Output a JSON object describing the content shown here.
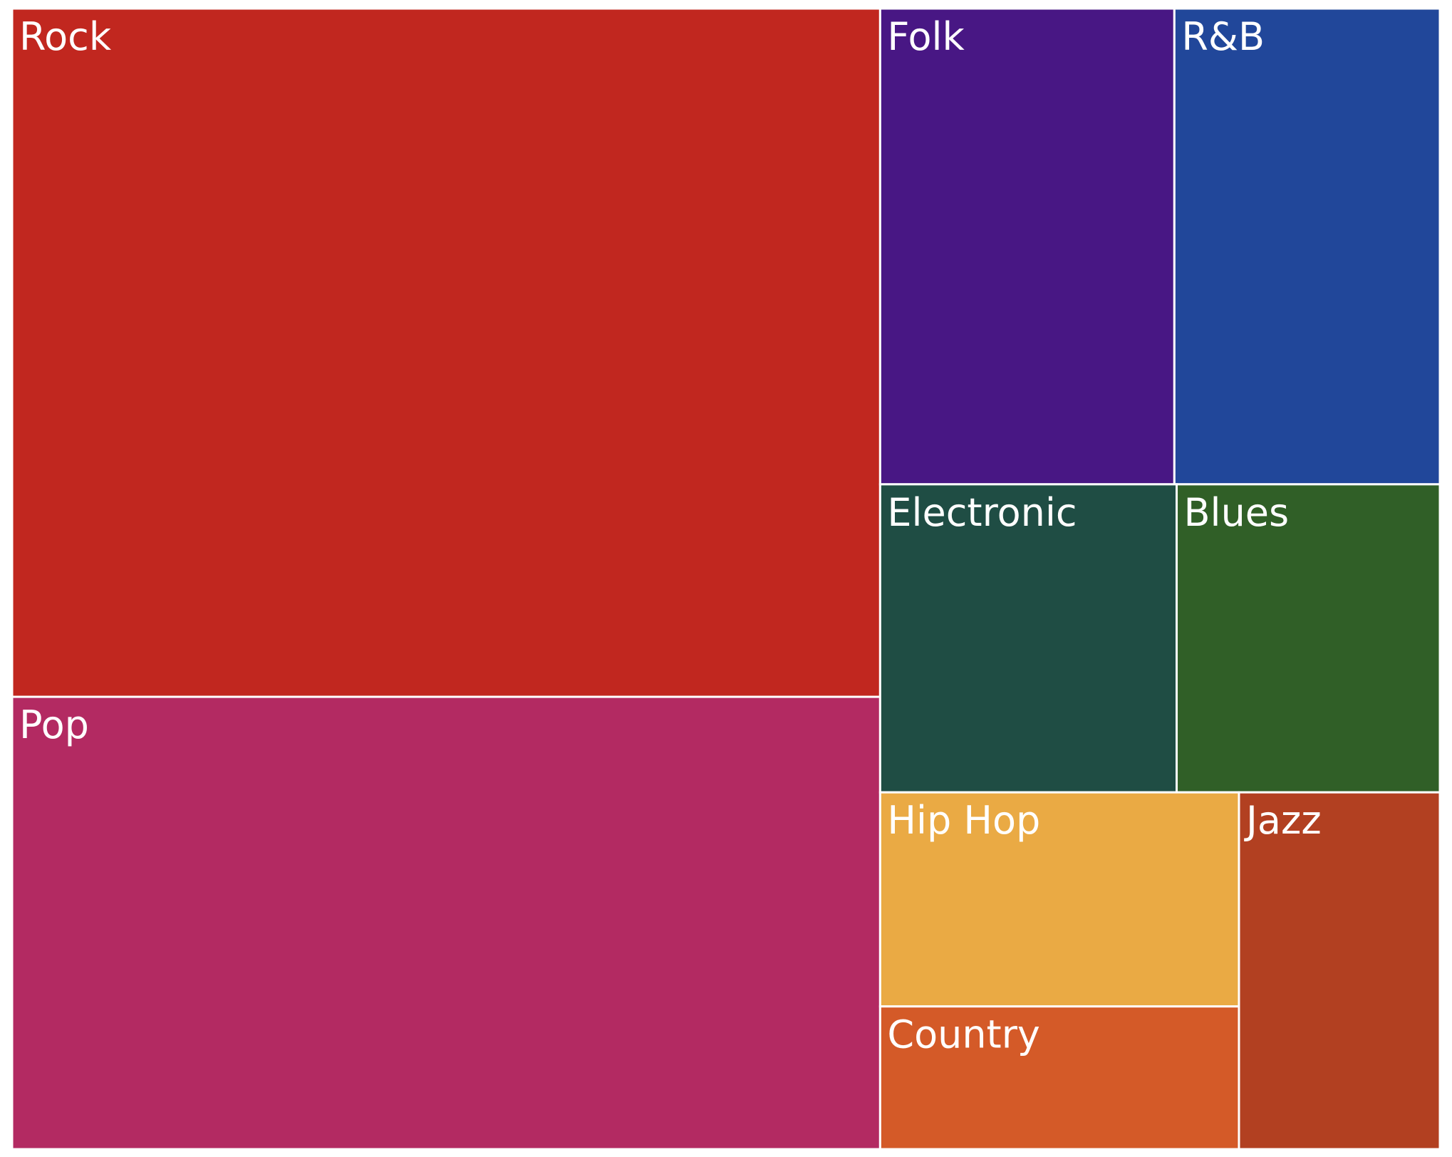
{
  "chart_data": {
    "type": "treemap",
    "title": "",
    "categories": [
      "Rock",
      "Pop",
      "Folk",
      "R&B",
      "Electronic",
      "Blues",
      "Hip Hop",
      "Country",
      "Jazz"
    ],
    "values": [
      35.0,
      23.0,
      8.2,
      7.4,
      5.35,
      4.75,
      4.5,
      3.0,
      4.2
    ],
    "colors": [
      "#c1271f",
      "#b32a62",
      "#481784",
      "#21479a",
      "#1f4d44",
      "#305f27",
      "#eaaa44",
      "#d45a28",
      "#b24021"
    ]
  }
}
